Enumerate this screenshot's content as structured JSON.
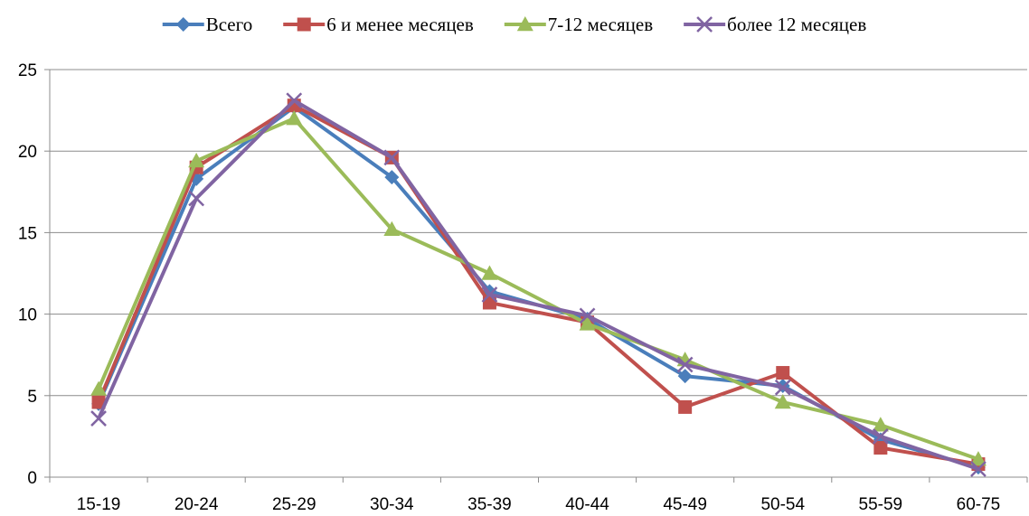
{
  "chart_data": {
    "type": "line",
    "categories": [
      "15-19",
      "20-24",
      "25-29",
      "30-34",
      "35-39",
      "40-44",
      "45-49",
      "50-54",
      "55-59",
      "60-75"
    ],
    "ylim": [
      0,
      25
    ],
    "yticks": [
      0,
      5,
      10,
      15,
      20,
      25
    ],
    "grid": true,
    "legend_position": "top",
    "series": [
      {
        "name": "Всего",
        "color": "#4a7ebb",
        "marker": "diamond",
        "values": [
          4.5,
          18.3,
          22.7,
          18.4,
          11.4,
          9.7,
          6.2,
          5.6,
          2.3,
          0.6
        ]
      },
      {
        "name": "6 и менее месяцев",
        "color": "#c0504d",
        "marker": "square",
        "values": [
          4.6,
          19.0,
          22.8,
          19.6,
          10.7,
          9.5,
          4.3,
          6.4,
          1.8,
          0.8
        ]
      },
      {
        "name": "7-12 месяцев",
        "color": "#9bbb59",
        "marker": "triangle",
        "values": [
          5.4,
          19.4,
          22.0,
          15.2,
          12.5,
          9.4,
          7.2,
          4.6,
          3.2,
          1.1
        ]
      },
      {
        "name": "более 12 месяцев",
        "color": "#8064a2",
        "marker": "x",
        "values": [
          3.6,
          17.1,
          23.1,
          19.6,
          11.2,
          9.9,
          6.9,
          5.5,
          2.5,
          0.5
        ]
      }
    ]
  }
}
